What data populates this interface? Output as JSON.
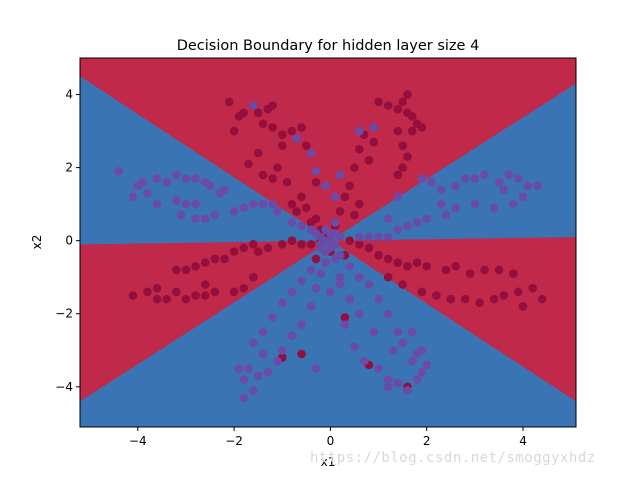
{
  "chart_data": {
    "type": "scatter",
    "title": "Decision Boundary for hidden layer size 4",
    "xlabel": "x1",
    "ylabel": "x2",
    "xlim": [
      -5.2,
      5.1
    ],
    "ylim": [
      -5.1,
      5.0
    ],
    "xticks": [
      -4,
      -2,
      0,
      2,
      4
    ],
    "yticks": [
      -4,
      -2,
      0,
      2,
      4
    ],
    "grid": false,
    "legend": "none",
    "colors": {
      "class_0": "#c0294a",
      "class_1": "#3b74b4",
      "point_0": "#940f3d",
      "point_1": "#6a4ba7"
    },
    "regions": [
      {
        "class": 0,
        "polygon": [
          [
            -5.2,
            4.5
          ],
          [
            0,
            0
          ],
          [
            5.1,
            4.3
          ],
          [
            5.1,
            5.0
          ],
          [
            -5.2,
            5.0
          ]
        ]
      },
      {
        "class": 0,
        "polygon": [
          [
            -5.2,
            -0.1
          ],
          [
            0,
            0
          ],
          [
            5.1,
            0.1
          ],
          [
            5.1,
            -4.4
          ],
          [
            0,
            0
          ],
          [
            -5.2,
            -4.4
          ]
        ]
      },
      {
        "class": 1,
        "polygon": [
          [
            -5.2,
            4.5
          ],
          [
            0,
            0
          ],
          [
            -5.2,
            -0.1
          ]
        ]
      },
      {
        "class": 1,
        "polygon": [
          [
            5.1,
            4.3
          ],
          [
            0,
            0
          ],
          [
            5.1,
            0.1
          ]
        ]
      },
      {
        "class": 1,
        "polygon": [
          [
            -5.2,
            -4.4
          ],
          [
            0,
            0
          ],
          [
            5.1,
            -4.4
          ],
          [
            5.1,
            -5.1
          ],
          [
            -5.2,
            -5.1
          ]
        ]
      }
    ],
    "series": [
      {
        "class": 0,
        "points": [
          [
            -2.1,
            3.8
          ],
          [
            -1.9,
            3.4
          ],
          [
            -2.0,
            3.0
          ],
          [
            -1.8,
            3.5
          ],
          [
            -1.5,
            3.5
          ],
          [
            -1.4,
            3.2
          ],
          [
            -1.2,
            3.7
          ],
          [
            -1.3,
            3.6
          ],
          [
            -1.6,
            3.7
          ],
          [
            -1.2,
            3.1
          ],
          [
            -1.0,
            2.6
          ],
          [
            -1.1,
            2.0
          ],
          [
            -1.2,
            1.7
          ],
          [
            -1.5,
            2.4
          ],
          [
            -1.7,
            2.1
          ],
          [
            -1.4,
            1.8
          ],
          [
            -0.9,
            1.6
          ],
          [
            -0.6,
            1.2
          ],
          [
            -0.7,
            0.8
          ],
          [
            -0.4,
            0.5
          ],
          [
            -0.8,
            1.0
          ],
          [
            -0.5,
            0.9
          ],
          [
            -0.3,
            0.6
          ],
          [
            -0.2,
            0.3
          ],
          [
            -0.1,
            0.1
          ],
          [
            -0.6,
            3.1
          ],
          [
            -0.8,
            3.0
          ],
          [
            -0.5,
            2.6
          ],
          [
            -0.3,
            1.6
          ],
          [
            -1.0,
            2.9
          ],
          [
            1.0,
            3.8
          ],
          [
            1.2,
            3.7
          ],
          [
            1.4,
            3.6
          ],
          [
            1.6,
            4.0
          ],
          [
            1.5,
            3.8
          ],
          [
            1.7,
            3.4
          ],
          [
            1.8,
            3.2
          ],
          [
            1.7,
            3.0
          ],
          [
            1.9,
            3.1
          ],
          [
            1.5,
            2.6
          ],
          [
            1.6,
            2.3
          ],
          [
            1.5,
            2.0
          ],
          [
            1.4,
            1.8
          ],
          [
            0.9,
            2.7
          ],
          [
            0.7,
            2.9
          ],
          [
            0.6,
            2.5
          ],
          [
            0.8,
            2.2
          ],
          [
            0.5,
            2.0
          ],
          [
            0.4,
            1.5
          ],
          [
            0.3,
            1.2
          ],
          [
            0.2,
            0.8
          ],
          [
            0.6,
            1.0
          ],
          [
            0.5,
            0.7
          ],
          [
            0.1,
            0.4
          ],
          [
            1.6,
            3.5
          ],
          [
            1.4,
            3.0
          ],
          [
            -4.1,
            -1.5
          ],
          [
            -3.8,
            -1.4
          ],
          [
            -3.6,
            -1.6
          ],
          [
            -3.4,
            -1.6
          ],
          [
            -3.2,
            -1.4
          ],
          [
            -3.0,
            -1.6
          ],
          [
            -2.8,
            -1.5
          ],
          [
            -2.6,
            -1.5
          ],
          [
            -2.4,
            -1.4
          ],
          [
            -2.0,
            -1.4
          ],
          [
            -1.8,
            -1.3
          ],
          [
            -3.2,
            -0.8
          ],
          [
            -3.0,
            -0.8
          ],
          [
            -2.8,
            -0.7
          ],
          [
            -2.6,
            -0.6
          ],
          [
            -2.4,
            -0.5
          ],
          [
            -2.2,
            -0.5
          ],
          [
            -2.0,
            -0.3
          ],
          [
            -1.8,
            -0.2
          ],
          [
            -1.6,
            -0.1
          ],
          [
            -1.5,
            -0.3
          ],
          [
            -1.3,
            -0.2
          ],
          [
            -1.0,
            -0.1
          ],
          [
            -0.8,
            0.0
          ],
          [
            -0.6,
            -0.1
          ],
          [
            -0.4,
            -0.1
          ],
          [
            -0.2,
            0.0
          ],
          [
            -2.6,
            -1.2
          ],
          [
            -3.6,
            -1.3
          ],
          [
            -1.6,
            -1.0
          ],
          [
            0.4,
            0.0
          ],
          [
            0.6,
            -0.1
          ],
          [
            0.8,
            -0.2
          ],
          [
            1.0,
            -0.4
          ],
          [
            1.2,
            -0.5
          ],
          [
            1.4,
            -0.6
          ],
          [
            1.6,
            -0.7
          ],
          [
            1.8,
            -0.6
          ],
          [
            2.0,
            -0.7
          ],
          [
            2.4,
            -0.8
          ],
          [
            2.6,
            -0.7
          ],
          [
            2.9,
            -0.9
          ],
          [
            3.2,
            -0.8
          ],
          [
            3.5,
            -0.8
          ],
          [
            3.8,
            -0.9
          ],
          [
            3.9,
            -1.4
          ],
          [
            3.6,
            -1.5
          ],
          [
            3.4,
            -1.6
          ],
          [
            3.1,
            -1.7
          ],
          [
            2.8,
            -1.6
          ],
          [
            2.5,
            -1.6
          ],
          [
            2.2,
            -1.5
          ],
          [
            1.9,
            -1.4
          ],
          [
            1.5,
            -1.2
          ],
          [
            4.2,
            -1.3
          ],
          [
            4.4,
            -1.6
          ],
          [
            4.0,
            -1.8
          ],
          [
            1.2,
            -1.0
          ],
          [
            -1.0,
            -3.2
          ],
          [
            -0.6,
            -3.1
          ],
          [
            0.3,
            -2.1
          ],
          [
            0.8,
            -3.4
          ],
          [
            1.6,
            -4.0
          ],
          [
            0.0,
            -0.3
          ],
          [
            0.3,
            -0.4
          ],
          [
            -0.3,
            -0.5
          ]
        ]
      },
      {
        "class": 1,
        "points": [
          [
            -4.4,
            1.9
          ],
          [
            -4.0,
            1.5
          ],
          [
            -4.1,
            1.2
          ],
          [
            -3.8,
            1.3
          ],
          [
            -3.6,
            1.7
          ],
          [
            -3.4,
            1.6
          ],
          [
            -3.2,
            1.8
          ],
          [
            -3.0,
            1.7
          ],
          [
            -2.8,
            1.7
          ],
          [
            -2.6,
            1.6
          ],
          [
            -2.5,
            1.5
          ],
          [
            -2.2,
            1.4
          ],
          [
            -3.6,
            1.0
          ],
          [
            -3.2,
            1.1
          ],
          [
            -3.0,
            1.0
          ],
          [
            -2.8,
            1.0
          ],
          [
            -3.1,
            0.7
          ],
          [
            -2.8,
            0.6
          ],
          [
            -2.6,
            0.6
          ],
          [
            -2.4,
            0.7
          ],
          [
            -2.0,
            0.8
          ],
          [
            -1.8,
            0.9
          ],
          [
            -1.6,
            1.0
          ],
          [
            -1.4,
            1.0
          ],
          [
            -1.2,
            1.0
          ],
          [
            -1.1,
            0.8
          ],
          [
            -0.8,
            0.5
          ],
          [
            -0.6,
            0.4
          ],
          [
            -0.4,
            0.3
          ],
          [
            -0.2,
            0.1
          ],
          [
            -3.9,
            1.6
          ],
          [
            -2.3,
            1.3
          ],
          [
            1.9,
            1.7
          ],
          [
            2.1,
            1.6
          ],
          [
            2.3,
            1.4
          ],
          [
            2.6,
            1.5
          ],
          [
            2.8,
            1.7
          ],
          [
            3.0,
            1.7
          ],
          [
            3.2,
            1.8
          ],
          [
            3.5,
            1.6
          ],
          [
            3.7,
            1.8
          ],
          [
            3.9,
            1.7
          ],
          [
            4.1,
            1.5
          ],
          [
            4.3,
            1.5
          ],
          [
            4.0,
            1.2
          ],
          [
            3.8,
            1.0
          ],
          [
            3.4,
            0.9
          ],
          [
            3.0,
            1.0
          ],
          [
            2.6,
            0.9
          ],
          [
            2.4,
            0.7
          ],
          [
            2.0,
            0.6
          ],
          [
            1.8,
            0.5
          ],
          [
            1.6,
            0.4
          ],
          [
            1.4,
            0.3
          ],
          [
            1.2,
            0.1
          ],
          [
            1.0,
            0.1
          ],
          [
            0.8,
            0.1
          ],
          [
            0.6,
            0.1
          ],
          [
            3.6,
            1.4
          ],
          [
            2.3,
            1.0
          ],
          [
            1.2,
            0.6
          ],
          [
            1.4,
            1.2
          ],
          [
            -0.7,
            2.8
          ],
          [
            -0.4,
            2.4
          ],
          [
            -0.3,
            1.9
          ],
          [
            -0.1,
            1.5
          ],
          [
            0.1,
            1.2
          ],
          [
            0.2,
            1.8
          ],
          [
            0.6,
            3.0
          ],
          [
            0.9,
            3.1
          ],
          [
            0.1,
            0.5
          ],
          [
            -0.1,
            0.3
          ],
          [
            -1.6,
            3.7
          ],
          [
            -1.8,
            -4.3
          ],
          [
            -1.6,
            -4.1
          ],
          [
            -1.8,
            -3.8
          ],
          [
            -1.3,
            -3.6
          ],
          [
            -1.1,
            -3.3
          ],
          [
            -1.0,
            -3.0
          ],
          [
            -0.8,
            -2.6
          ],
          [
            -0.6,
            -2.3
          ],
          [
            -0.4,
            -1.8
          ],
          [
            -0.3,
            -1.3
          ],
          [
            -0.2,
            -0.9
          ],
          [
            -0.1,
            -0.6
          ],
          [
            -1.4,
            -3.1
          ],
          [
            -1.6,
            -2.8
          ],
          [
            -1.4,
            -2.5
          ],
          [
            -1.2,
            -2.1
          ],
          [
            -1.0,
            -1.7
          ],
          [
            -0.8,
            -1.4
          ],
          [
            -0.6,
            -1.1
          ],
          [
            -0.4,
            -0.8
          ],
          [
            -1.9,
            -3.5
          ],
          [
            -1.7,
            -3.5
          ],
          [
            -1.5,
            -3.7
          ],
          [
            -0.3,
            -3.5
          ],
          [
            0.0,
            -1.4
          ],
          [
            0.2,
            -1.0
          ],
          [
            0.1,
            -0.5
          ],
          [
            -0.2,
            -0.2
          ],
          [
            0.3,
            -2.3
          ],
          [
            0.5,
            -2.9
          ],
          [
            0.7,
            -3.3
          ],
          [
            1.0,
            -3.5
          ],
          [
            1.2,
            -3.8
          ],
          [
            1.4,
            -3.9
          ],
          [
            1.6,
            -4.1
          ],
          [
            1.8,
            -3.8
          ],
          [
            1.9,
            -3.6
          ],
          [
            1.7,
            -3.3
          ],
          [
            1.5,
            -2.8
          ],
          [
            1.4,
            -2.5
          ],
          [
            1.2,
            -2.0
          ],
          [
            1.0,
            -1.6
          ],
          [
            0.8,
            -1.2
          ],
          [
            0.6,
            -1.0
          ],
          [
            0.4,
            -0.7
          ],
          [
            0.2,
            -0.4
          ],
          [
            1.9,
            -3.0
          ],
          [
            1.7,
            -2.5
          ],
          [
            1.3,
            -3.0
          ],
          [
            0.9,
            -2.5
          ],
          [
            0.6,
            -2.0
          ],
          [
            0.4,
            -1.6
          ],
          [
            0.2,
            -1.2
          ],
          [
            2.0,
            -3.4
          ],
          [
            1.8,
            -3.1
          ],
          [
            1.2,
            -4.0
          ],
          [
            0.0,
            0.0
          ],
          [
            0.1,
            -0.1
          ],
          [
            -0.1,
            0.0
          ],
          [
            0.2,
            0.1
          ],
          [
            -0.2,
            -0.1
          ],
          [
            0.0,
            0.2
          ],
          [
            0.0,
            -0.2
          ],
          [
            -0.1,
            -0.3
          ],
          [
            0.1,
            0.2
          ],
          [
            -0.3,
            0.2
          ]
        ]
      }
    ]
  },
  "watermark": "https://blog.csdn.net/smoggyxhdz"
}
